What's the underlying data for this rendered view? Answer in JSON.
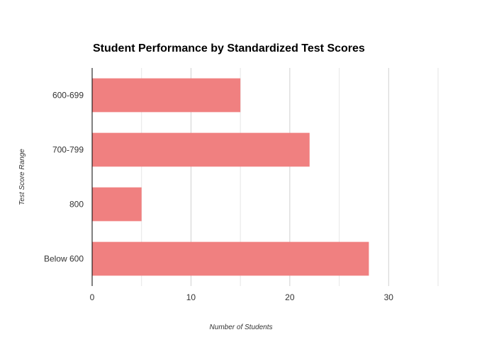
{
  "chart_data": {
    "type": "bar",
    "orientation": "horizontal",
    "title": "Student Performance by Standardized Test Scores",
    "xlabel": "Number of Students",
    "ylabel": "Test Score Range",
    "categories": [
      "600-699",
      "700-799",
      "800",
      "Below 600"
    ],
    "values": [
      15,
      22,
      5,
      28
    ],
    "xlim": [
      0,
      35
    ],
    "xticks": [
      "0",
      "10",
      "20",
      "30"
    ],
    "grid": true,
    "bar_color": "#f08080",
    "grid_color": "#e6e6e6",
    "axis_color": "#000000"
  }
}
